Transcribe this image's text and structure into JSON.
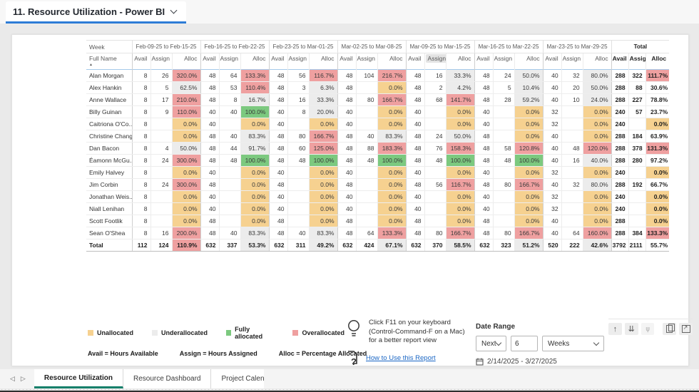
{
  "header": {
    "title": "11. Resource Utilization - Power BI"
  },
  "matrix": {
    "corner_top": "Week",
    "corner_bottom": "Full Name",
    "sort_glyph": "▲",
    "col_headers": [
      "Avail",
      "Assign",
      "Alloc"
    ],
    "weeks": [
      "Feb-09-25 to Feb-15-25",
      "Feb-16-25 to Feb-22-25",
      "Feb-23-25 to Mar-01-25",
      "Mar-02-25 to Mar-08-25",
      "Mar-09-25 to Mar-15-25",
      "Mar-16-25 to Mar-22-25",
      "Mar-23-25 to Mar-29-25",
      "Total"
    ],
    "sorted": {
      "week": 4,
      "col": 1
    },
    "rows": [
      {
        "name": "Alan Morgan",
        "cells": [
          [
            "8",
            "26",
            "320.0%",
            "over"
          ],
          [
            "48",
            "64",
            "133.3%",
            "over"
          ],
          [
            "48",
            "56",
            "116.7%",
            "over"
          ],
          [
            "48",
            "104",
            "216.7%",
            "over"
          ],
          [
            "48",
            "16",
            "33.3%",
            "under"
          ],
          [
            "48",
            "24",
            "50.0%",
            "under"
          ],
          [
            "40",
            "32",
            "80.0%",
            "under"
          ],
          [
            "288",
            "322",
            "111.7%",
            "over"
          ]
        ]
      },
      {
        "name": "Alex Hankin",
        "cells": [
          [
            "8",
            "5",
            "62.5%",
            "under"
          ],
          [
            "48",
            "53",
            "110.4%",
            "over"
          ],
          [
            "48",
            "3",
            "6.3%",
            "under"
          ],
          [
            "48",
            "",
            "0.0%",
            "un"
          ],
          [
            "48",
            "2",
            "4.2%",
            "under"
          ],
          [
            "48",
            "5",
            "10.4%",
            "under"
          ],
          [
            "40",
            "20",
            "50.0%",
            "under"
          ],
          [
            "288",
            "88",
            "30.6%",
            "under"
          ]
        ]
      },
      {
        "name": "Anne Wallace",
        "cells": [
          [
            "8",
            "17",
            "210.0%",
            "over"
          ],
          [
            "48",
            "8",
            "16.7%",
            "under"
          ],
          [
            "48",
            "16",
            "33.3%",
            "under"
          ],
          [
            "48",
            "80",
            "166.7%",
            "over"
          ],
          [
            "48",
            "68",
            "141.7%",
            "over"
          ],
          [
            "48",
            "28",
            "59.2%",
            "under"
          ],
          [
            "40",
            "10",
            "24.0%",
            "under"
          ],
          [
            "288",
            "227",
            "78.8%",
            "under"
          ]
        ]
      },
      {
        "name": "Billy Guinan",
        "cells": [
          [
            "8",
            "9",
            "110.0%",
            "over"
          ],
          [
            "40",
            "40",
            "100.0%",
            "full"
          ],
          [
            "40",
            "8",
            "20.0%",
            "under"
          ],
          [
            "40",
            "",
            "0.0%",
            "un"
          ],
          [
            "40",
            "",
            "0.0%",
            "un"
          ],
          [
            "40",
            "",
            "0.0%",
            "un"
          ],
          [
            "32",
            "",
            "0.0%",
            "un"
          ],
          [
            "240",
            "57",
            "23.7%",
            "under"
          ]
        ]
      },
      {
        "name": "Caitriona O'Co...",
        "cells": [
          [
            "8",
            "",
            "0.0%",
            "un"
          ],
          [
            "40",
            "",
            "0.0%",
            "un"
          ],
          [
            "40",
            "",
            "0.0%",
            "un"
          ],
          [
            "40",
            "",
            "0.0%",
            "un"
          ],
          [
            "40",
            "",
            "0.0%",
            "un"
          ],
          [
            "40",
            "",
            "0.0%",
            "un"
          ],
          [
            "32",
            "",
            "0.0%",
            "un"
          ],
          [
            "240",
            "",
            "0.0%",
            "un"
          ]
        ]
      },
      {
        "name": "Christine Chang",
        "cells": [
          [
            "8",
            "",
            "0.0%",
            "un"
          ],
          [
            "48",
            "40",
            "83.3%",
            "under"
          ],
          [
            "48",
            "80",
            "166.7%",
            "over"
          ],
          [
            "48",
            "40",
            "83.3%",
            "under"
          ],
          [
            "48",
            "24",
            "50.0%",
            "under"
          ],
          [
            "48",
            "",
            "0.0%",
            "un"
          ],
          [
            "40",
            "",
            "0.0%",
            "un"
          ],
          [
            "288",
            "184",
            "63.9%",
            "under"
          ]
        ]
      },
      {
        "name": "Dan Bacon",
        "cells": [
          [
            "8",
            "4",
            "50.0%",
            "under"
          ],
          [
            "48",
            "44",
            "91.7%",
            "under"
          ],
          [
            "48",
            "60",
            "125.0%",
            "over"
          ],
          [
            "48",
            "88",
            "183.3%",
            "over"
          ],
          [
            "48",
            "76",
            "158.3%",
            "over"
          ],
          [
            "48",
            "58",
            "120.8%",
            "over"
          ],
          [
            "40",
            "48",
            "120.0%",
            "over"
          ],
          [
            "288",
            "378",
            "131.3%",
            "over"
          ]
        ]
      },
      {
        "name": "Éamonn McGu...",
        "cells": [
          [
            "8",
            "24",
            "300.0%",
            "over"
          ],
          [
            "48",
            "48",
            "100.0%",
            "full"
          ],
          [
            "48",
            "48",
            "100.0%",
            "full"
          ],
          [
            "48",
            "48",
            "100.0%",
            "full"
          ],
          [
            "48",
            "48",
            "100.0%",
            "full"
          ],
          [
            "48",
            "48",
            "100.0%",
            "full"
          ],
          [
            "40",
            "16",
            "40.0%",
            "under"
          ],
          [
            "288",
            "280",
            "97.2%",
            "under"
          ]
        ]
      },
      {
        "name": "Emily Halvey",
        "cells": [
          [
            "8",
            "",
            "0.0%",
            "un"
          ],
          [
            "40",
            "",
            "0.0%",
            "un"
          ],
          [
            "40",
            "",
            "0.0%",
            "un"
          ],
          [
            "40",
            "",
            "0.0%",
            "un"
          ],
          [
            "40",
            "",
            "0.0%",
            "un"
          ],
          [
            "40",
            "",
            "0.0%",
            "un"
          ],
          [
            "32",
            "",
            "0.0%",
            "un"
          ],
          [
            "240",
            "",
            "0.0%",
            "un"
          ]
        ]
      },
      {
        "name": "Jim Corbin",
        "cells": [
          [
            "8",
            "24",
            "300.0%",
            "over"
          ],
          [
            "48",
            "",
            "0.0%",
            "un"
          ],
          [
            "48",
            "",
            "0.0%",
            "un"
          ],
          [
            "48",
            "",
            "0.0%",
            "un"
          ],
          [
            "48",
            "56",
            "116.7%",
            "over"
          ],
          [
            "48",
            "80",
            "166.7%",
            "over"
          ],
          [
            "40",
            "32",
            "80.0%",
            "under"
          ],
          [
            "288",
            "192",
            "66.7%",
            "under"
          ]
        ]
      },
      {
        "name": "Jonathan Weis...",
        "cells": [
          [
            "8",
            "",
            "0.0%",
            "un"
          ],
          [
            "40",
            "",
            "0.0%",
            "un"
          ],
          [
            "40",
            "",
            "0.0%",
            "un"
          ],
          [
            "40",
            "",
            "0.0%",
            "un"
          ],
          [
            "40",
            "",
            "0.0%",
            "un"
          ],
          [
            "40",
            "",
            "0.0%",
            "un"
          ],
          [
            "32",
            "",
            "0.0%",
            "un"
          ],
          [
            "240",
            "",
            "0.0%",
            "un"
          ]
        ]
      },
      {
        "name": "Niall Lenihan",
        "cells": [
          [
            "8",
            "",
            "0.0%",
            "un"
          ],
          [
            "40",
            "",
            "0.0%",
            "un"
          ],
          [
            "40",
            "",
            "0.0%",
            "un"
          ],
          [
            "40",
            "",
            "0.0%",
            "un"
          ],
          [
            "40",
            "",
            "0.0%",
            "un"
          ],
          [
            "40",
            "",
            "0.0%",
            "un"
          ],
          [
            "32",
            "",
            "0.0%",
            "un"
          ],
          [
            "240",
            "",
            "0.0%",
            "un"
          ]
        ]
      },
      {
        "name": "Scott Footlik",
        "cells": [
          [
            "8",
            "",
            "0.0%",
            "un"
          ],
          [
            "48",
            "",
            "0.0%",
            "un"
          ],
          [
            "48",
            "",
            "0.0%",
            "un"
          ],
          [
            "48",
            "",
            "0.0%",
            "un"
          ],
          [
            "48",
            "",
            "0.0%",
            "un"
          ],
          [
            "48",
            "",
            "0.0%",
            "un"
          ],
          [
            "40",
            "",
            "0.0%",
            "un"
          ],
          [
            "288",
            "",
            "0.0%",
            "un"
          ]
        ]
      },
      {
        "name": "Sean O'Shea",
        "cells": [
          [
            "8",
            "16",
            "200.0%",
            "over"
          ],
          [
            "48",
            "40",
            "83.3%",
            "under"
          ],
          [
            "48",
            "40",
            "83.3%",
            "under"
          ],
          [
            "48",
            "64",
            "133.3%",
            "over"
          ],
          [
            "48",
            "80",
            "166.7%",
            "over"
          ],
          [
            "48",
            "80",
            "166.7%",
            "over"
          ],
          [
            "40",
            "64",
            "160.0%",
            "over"
          ],
          [
            "288",
            "384",
            "133.3%",
            "over"
          ]
        ]
      }
    ],
    "total_row": {
      "name": "Total",
      "cells": [
        [
          "112",
          "124",
          "110.9%",
          "over"
        ],
        [
          "632",
          "337",
          "53.3%",
          "under"
        ],
        [
          "632",
          "311",
          "49.2%",
          "under"
        ],
        [
          "632",
          "424",
          "67.1%",
          "under"
        ],
        [
          "632",
          "370",
          "58.5%",
          "under"
        ],
        [
          "632",
          "323",
          "51.2%",
          "under"
        ],
        [
          "520",
          "222",
          "42.6%",
          "under"
        ],
        [
          "3792",
          "2111",
          "55.7%",
          "under"
        ]
      ]
    }
  },
  "legend": {
    "items": [
      {
        "label": "Unallocated",
        "key": "unallocated"
      },
      {
        "label": "Underallocated",
        "key": "underallocated"
      },
      {
        "label": "Fully allocated",
        "key": "fully_allocated"
      },
      {
        "label": "Overallocated",
        "key": "overallocated"
      }
    ],
    "defs": [
      "Avail = Hours Available",
      "Assign = Hours Assigned",
      "Alloc = Percentage Allocated"
    ]
  },
  "tip": {
    "lines": [
      "Click F11 on your keyboard",
      "(Control-Command-F on a Mac)",
      "for a better report view"
    ],
    "link_label": "How to Use this Report"
  },
  "date_range": {
    "label": "Date Range",
    "op": "Next",
    "value": "6",
    "unit": "Weeks",
    "range_text": "2/14/2025 - 3/27/2025"
  },
  "toolbar": {
    "icons": [
      {
        "name": "drill-up-icon",
        "glyph": "↑"
      },
      {
        "name": "drill-down-icon",
        "glyph": "⇊"
      },
      {
        "name": "expand-all-levels-icon",
        "glyph": "⋔",
        "flip": true,
        "disabled": true
      },
      {
        "name": "copy-icon",
        "shape": "copy",
        "gap": true
      },
      {
        "name": "focus-mode-icon",
        "shape": "focus"
      }
    ]
  },
  "tabs": {
    "items": [
      "Resource Utilization",
      "Resource Dashboard",
      "Project Calen"
    ],
    "active_index": 0
  },
  "colors": {
    "accent_blue": "#2e7cd6",
    "tab_green": "#17806b",
    "link_blue": "#1a66c4",
    "unallocated": "#f6d190",
    "underallocated": "#ececec",
    "fully_allocated": "#7cc97f",
    "overallocated": "#efa0a0"
  }
}
